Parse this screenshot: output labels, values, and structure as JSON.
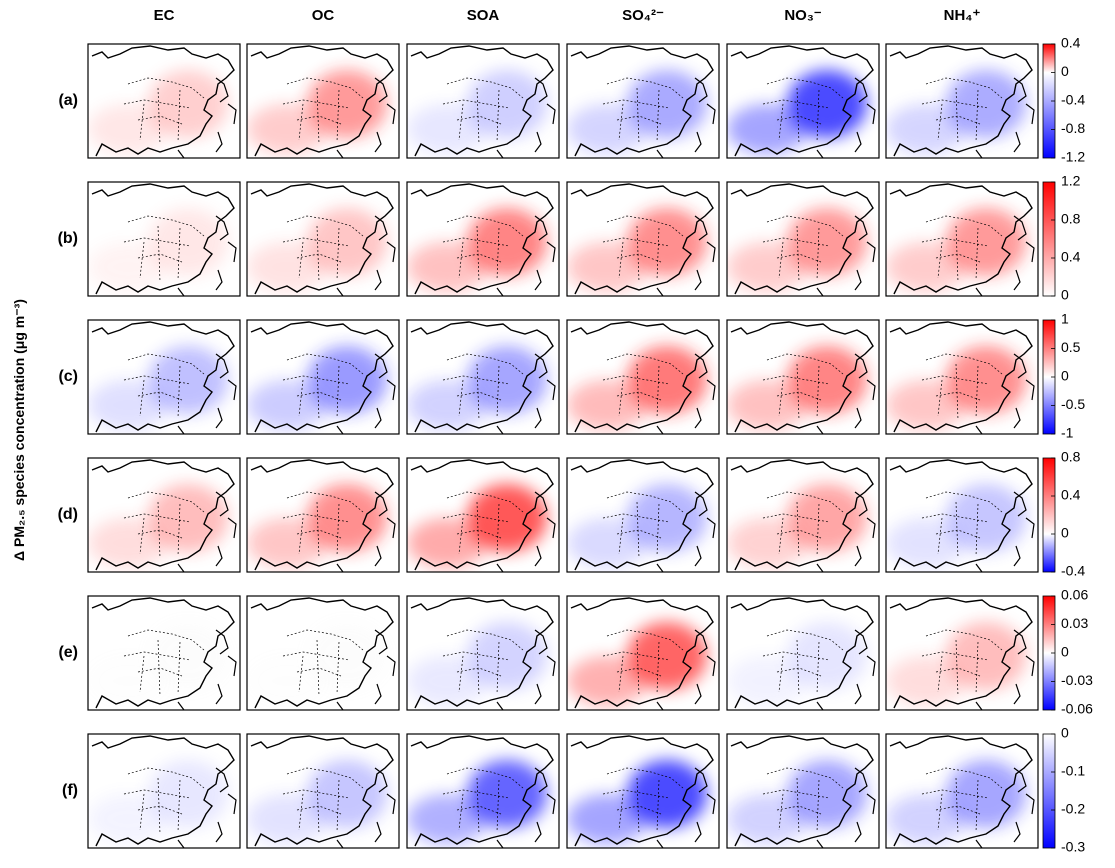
{
  "column_headers": [
    "EC",
    "OC",
    "SOA",
    "SO₄²⁻",
    "NO₃⁻",
    "NH₄⁺"
  ],
  "row_labels": [
    "(a)",
    "(b)",
    "(c)",
    "(d)",
    "(e)",
    "(f)"
  ],
  "y_axis_label": "Δ PM₂.₅ species concentration (μg m⁻³)",
  "colorbars": [
    {
      "ylim": [
        -1.2,
        0.4
      ],
      "yticks": [
        0.4,
        0,
        -0.4,
        -0.8,
        -1.2
      ]
    },
    {
      "ylim": [
        0,
        1.2
      ],
      "yticks": [
        1.2,
        0.8,
        0.4,
        0
      ]
    },
    {
      "ylim": [
        -1,
        1
      ],
      "yticks": [
        1,
        0.5,
        0,
        -0.5,
        -1
      ]
    },
    {
      "ylim": [
        -0.4,
        0.8
      ],
      "yticks": [
        0.8,
        0.4,
        0,
        -0.4
      ]
    },
    {
      "ylim": [
        -0.06,
        0.06
      ],
      "yticks": [
        0.06,
        0.03,
        0,
        -0.03,
        -0.06
      ]
    },
    {
      "ylim": [
        -0.3,
        0
      ],
      "yticks": [
        0,
        -0.1,
        -0.2,
        -0.3
      ]
    }
  ]
}
